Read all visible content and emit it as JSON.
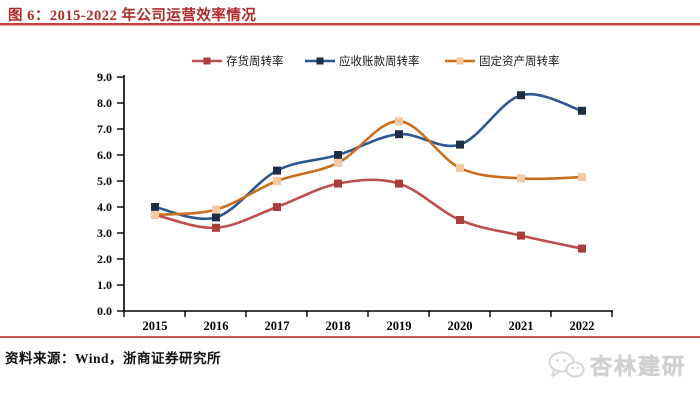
{
  "figure": {
    "title": "图 6：2015-2022 年公司运营效率情况",
    "source_note": "资料来源：Wind，浙商证券研究所",
    "watermark": "杏林建研"
  },
  "colors": {
    "title_red": "#b02a2a",
    "divider_red": "#c24340",
    "axis_black": "#000000",
    "watermark_gray": "#d7d7d7"
  },
  "chart_data": {
    "type": "line",
    "title": "",
    "categories": [
      "2015",
      "2016",
      "2017",
      "2018",
      "2019",
      "2020",
      "2021",
      "2022"
    ],
    "series": [
      {
        "name": "存货周转率",
        "values": [
          3.7,
          3.2,
          4.0,
          4.9,
          4.9,
          3.5,
          2.9,
          2.4
        ],
        "line_color": "#bf4f4c",
        "marker_color": "#a93e3c"
      },
      {
        "name": "应收账款周转率",
        "values": [
          4.0,
          3.6,
          5.4,
          6.0,
          6.8,
          6.4,
          8.3,
          7.7
        ],
        "line_color": "#2c5791",
        "marker_color": "#1f2e45"
      },
      {
        "name": "固定资产周转率",
        "values": [
          3.7,
          3.9,
          5.0,
          5.7,
          7.3,
          5.5,
          5.1,
          5.15
        ],
        "line_color": "#c96f1e",
        "marker_color": "#f6c9a2"
      }
    ],
    "xlabel": "",
    "ylabel": "",
    "ylim": [
      0,
      9
    ],
    "ytick_step": 1,
    "ytick_format": "one_decimal",
    "grid": false,
    "legend_position": "top"
  }
}
